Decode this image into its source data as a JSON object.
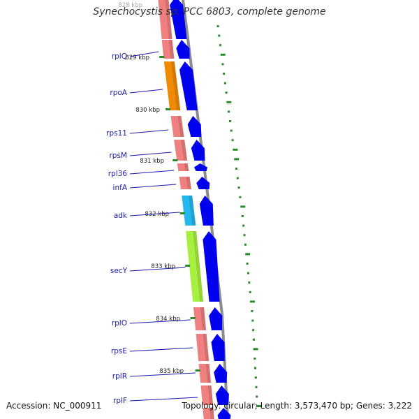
{
  "header": {
    "title": "Synechocystis sp. PCC 6803, complete genome"
  },
  "footer": {
    "accession": "Accession: NC_000911",
    "summary": "Topology: circular; Length: 3,573,470 bp; Genes: 3,222"
  },
  "colors": {
    "gene_cds": "#f08080",
    "gene_cds_dark": "#b04040",
    "strand_arrow": "#0000ee",
    "backbone": "#8c8c8c",
    "tick": "#2a8a2a",
    "label": "#1a1aaa",
    "rpoA": "#f08a00",
    "adk": "#22b8ee",
    "secY": "#a8f040"
  },
  "genome_map": {
    "ruler": [
      {
        "label": "828 kbp"
      },
      {
        "label": "829 kbp"
      },
      {
        "label": "830 kbp"
      },
      {
        "label": "831 kbp"
      },
      {
        "label": "832 kbp"
      },
      {
        "label": "833 kbp"
      },
      {
        "label": "834 kbp"
      },
      {
        "label": "835 kbp"
      }
    ],
    "genes": [
      {
        "name": "",
        "color_key": "gene_cds"
      },
      {
        "name": "rplQ",
        "color_key": "gene_cds"
      },
      {
        "name": "rpoA",
        "color_key": "rpoA"
      },
      {
        "name": "rps11",
        "color_key": "gene_cds"
      },
      {
        "name": "rpsM",
        "color_key": "gene_cds"
      },
      {
        "name": "rpl36",
        "color_key": "gene_cds"
      },
      {
        "name": "infA",
        "color_key": "gene_cds"
      },
      {
        "name": "adk",
        "color_key": "adk"
      },
      {
        "name": "secY",
        "color_key": "secY"
      },
      {
        "name": "rplO",
        "color_key": "gene_cds"
      },
      {
        "name": "rpsE",
        "color_key": "gene_cds"
      },
      {
        "name": "rplR",
        "color_key": "gene_cds"
      },
      {
        "name": "rplF",
        "color_key": "gene_cds"
      },
      {
        "name": "",
        "color_key": "gene_cds"
      }
    ]
  }
}
